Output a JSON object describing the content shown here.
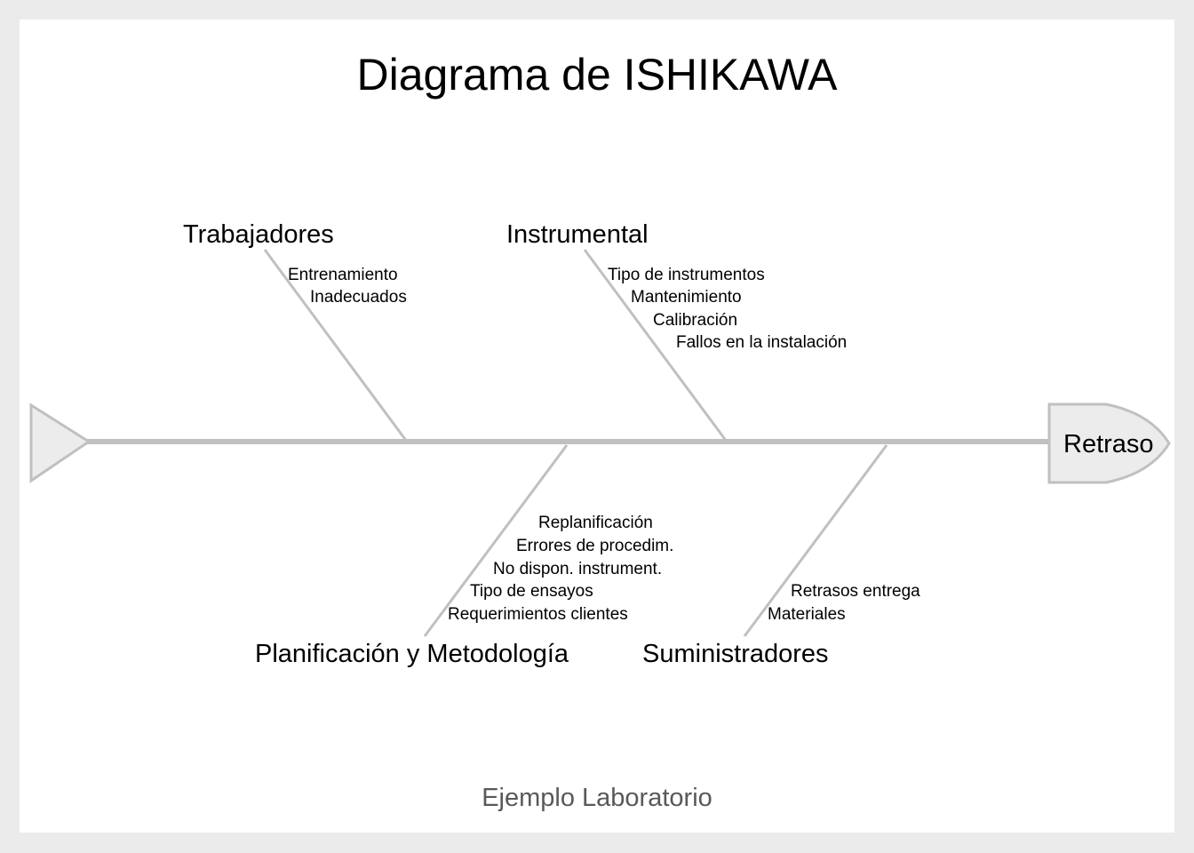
{
  "title": "Diagrama de ISHIKAWA",
  "footer": "Ejemplo Laboratorio",
  "effect": "Retraso",
  "categories": [
    {
      "label": "Trabajadores",
      "causes": [
        "Entrenamiento",
        "Inadecuados"
      ]
    },
    {
      "label": "Instrumental",
      "causes": [
        "Tipo de instrumentos",
        "Mantenimiento",
        "Calibración",
        "Fallos en la instalación"
      ]
    },
    {
      "label": "Planificación y Metodología",
      "causes": [
        "Replanificación",
        "Errores de procedim.",
        "No dispon. instrument.",
        "Tipo de ensayos",
        "Requerimientos clientes"
      ]
    },
    {
      "label": "Suministradores",
      "causes": [
        "Retrasos entrega",
        "Materiales"
      ]
    }
  ],
  "colors": {
    "line": "#c0c0c0",
    "shape_fill": "#ececec",
    "footer_text": "#595959"
  }
}
